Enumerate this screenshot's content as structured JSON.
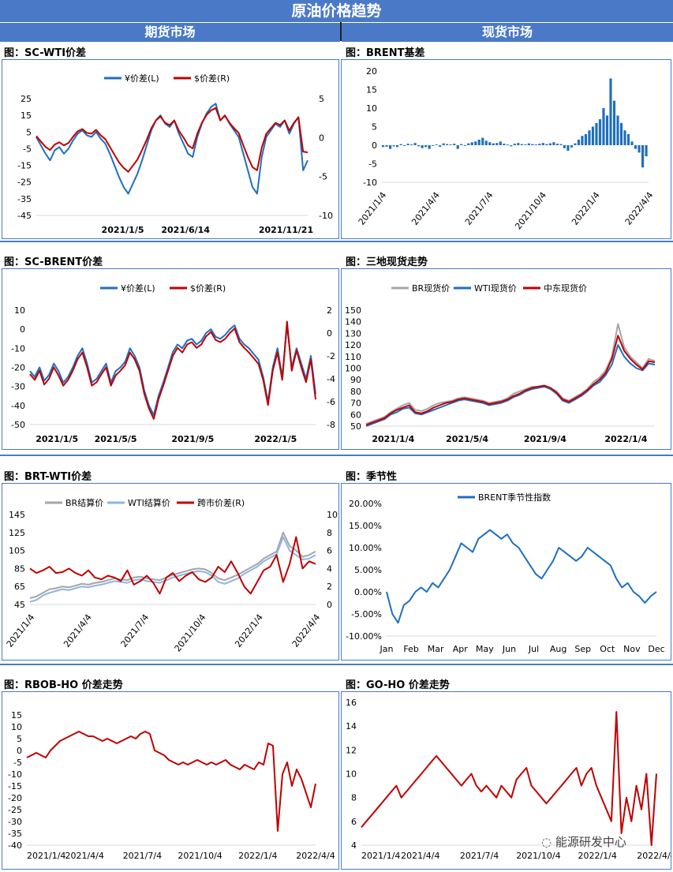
{
  "header": {
    "title": "原油价格趋势",
    "left_tab": "期货市场",
    "right_tab": "现货市场"
  },
  "watermark": "能源研发中心",
  "panels": [
    {
      "title": "图：SC-WTI价差"
    },
    {
      "title": "图：BRENT基差"
    },
    {
      "title": "图：SC-BRENT价差"
    },
    {
      "title": "图：三地现货走势"
    },
    {
      "title": "图：BRT-WTI价差"
    },
    {
      "title": "图：季节性"
    },
    {
      "title": "图：RBOB-HO 价差走势"
    },
    {
      "title": "图：GO-HO 价差走势"
    }
  ],
  "chart_data": [
    {
      "type": "line",
      "x_ticks": [
        "2021/1/5",
        "2021/6/14",
        "2021/11/21"
      ],
      "y_ticks": [
        "25",
        "15",
        "5",
        "-5",
        "-15",
        "-25",
        "-35",
        "-45"
      ],
      "y2_ticks": [
        "5",
        "0",
        "-5",
        "-10"
      ],
      "ylim": [
        -45,
        25
      ],
      "y2lim": [
        -10,
        5
      ],
      "series": [
        {
          "name": "¥价差(L)",
          "color": "#1f6fbf",
          "axis": "left",
          "values": [
            2,
            -3,
            -8,
            -12,
            -6,
            -4,
            -8,
            -5,
            0,
            4,
            6,
            3,
            2,
            5,
            1,
            -2,
            -8,
            -15,
            -22,
            -28,
            -32,
            -26,
            -20,
            -12,
            -3,
            6,
            12,
            15,
            10,
            8,
            12,
            4,
            -2,
            -8,
            -10,
            2,
            10,
            16,
            20,
            22,
            12,
            15,
            10,
            6,
            2,
            -8,
            -18,
            -28,
            -32,
            -10,
            2,
            6,
            10,
            8,
            12,
            4,
            10,
            14,
            -18,
            -12
          ]
        },
        {
          "name": "$价差(R)",
          "color": "#c00000",
          "axis": "right",
          "values": [
            0.2,
            -0.5,
            -1.2,
            -1.6,
            -0.9,
            -0.6,
            -1.0,
            -0.7,
            0.1,
            0.8,
            1.1,
            0.6,
            0.5,
            1.0,
            0.3,
            -0.2,
            -1.2,
            -2.2,
            -3.2,
            -3.9,
            -4.4,
            -3.6,
            -2.8,
            -1.6,
            -0.3,
            1.2,
            2.2,
            2.7,
            1.9,
            1.6,
            2.2,
            0.9,
            0.0,
            -1.0,
            -1.4,
            0.5,
            1.9,
            2.9,
            3.5,
            3.8,
            2.2,
            2.8,
            1.9,
            1.2,
            0.6,
            -1.0,
            -2.5,
            -3.8,
            -4.2,
            -1.3,
            0.5,
            1.2,
            1.9,
            1.6,
            2.2,
            0.9,
            1.9,
            2.6,
            -1.8,
            -1.9
          ]
        }
      ],
      "legend": "top"
    },
    {
      "type": "bar",
      "x_ticks": [
        "2021/1/4",
        "2021/4/4",
        "2021/7/4",
        "2021/10/4",
        "2022/1/4",
        "2022/4/4"
      ],
      "y_ticks": [
        "20",
        "15",
        "10",
        "5",
        "0",
        "-5",
        "-10"
      ],
      "ylim": [
        -10,
        20
      ],
      "color": "#1f6fbf",
      "values": [
        -0.5,
        -0.4,
        -1,
        -0.3,
        -0.5,
        0.3,
        -0.2,
        0.4,
        0.2,
        0.6,
        -0.3,
        -0.8,
        -0.5,
        -1,
        -0.2,
        0.2,
        -0.4,
        0.5,
        0.3,
        0.2,
        0.4,
        -1,
        0.3,
        -0.2,
        0.5,
        0.8,
        1,
        1.5,
        2,
        1.2,
        0.8,
        0.5,
        0.6,
        1,
        0.4,
        0.2,
        -0.3,
        0.4,
        0.6,
        0.3,
        0.2,
        0.5,
        0.3,
        0.2,
        0.4,
        0.6,
        0.3,
        0.5,
        0.8,
        0.4,
        0.3,
        -0.8,
        -1.5,
        -0.6,
        0.5,
        1.5,
        2.5,
        3,
        4,
        5,
        6,
        7,
        10,
        8,
        18,
        12,
        8,
        6,
        4,
        3,
        1,
        -1,
        -2,
        -6,
        -3
      ]
    },
    {
      "type": "line",
      "x_ticks": [
        "2021/1/5",
        "2021/5/5",
        "2021/9/5",
        "2022/1/5"
      ],
      "y_ticks": [
        "10",
        "0",
        "-10",
        "-20",
        "-30",
        "-40",
        "-50"
      ],
      "y2_ticks": [
        "2",
        "0",
        "-2",
        "-4",
        "-6",
        "-8"
      ],
      "ylim": [
        -50,
        10
      ],
      "y2lim": [
        -8,
        2
      ],
      "series": [
        {
          "name": "¥价差(L)",
          "color": "#1f6fbf",
          "axis": "left",
          "values": [
            -22,
            -25,
            -20,
            -27,
            -24,
            -18,
            -22,
            -28,
            -25,
            -20,
            -14,
            -10,
            -18,
            -28,
            -26,
            -22,
            -18,
            -28,
            -22,
            -20,
            -17,
            -10,
            -14,
            -20,
            -32,
            -40,
            -45,
            -35,
            -28,
            -20,
            -12,
            -8,
            -10,
            -6,
            -5,
            -8,
            -6,
            -2,
            0,
            -4,
            -5,
            -3,
            0,
            2,
            -5,
            -8,
            -10,
            -13,
            -16,
            -25,
            -38,
            -20,
            -10,
            -25,
            2,
            -20,
            -10,
            -18,
            -26,
            -14,
            -34
          ]
        },
        {
          "name": "$价差(R)",
          "color": "#c00000",
          "axis": "right",
          "values": [
            -3.6,
            -4.1,
            -3.3,
            -4.5,
            -4.0,
            -3.0,
            -3.7,
            -4.6,
            -4.1,
            -3.3,
            -2.3,
            -1.7,
            -3.0,
            -4.6,
            -4.3,
            -3.6,
            -3.0,
            -4.6,
            -3.7,
            -3.3,
            -2.8,
            -1.7,
            -2.3,
            -3.3,
            -5.3,
            -6.6,
            -7.5,
            -5.8,
            -4.6,
            -3.3,
            -2.0,
            -1.3,
            -1.7,
            -1.0,
            -0.8,
            -1.3,
            -1.0,
            -0.3,
            0.1,
            -0.6,
            -0.8,
            -0.5,
            0.0,
            0.4,
            -0.8,
            -1.3,
            -1.7,
            -2.2,
            -2.7,
            -4.1,
            -6.3,
            -3.3,
            -1.7,
            -4.1,
            1.0,
            -3.3,
            -1.5,
            -3.0,
            -4.3,
            -2.3,
            -5.8
          ]
        }
      ],
      "legend": "top"
    },
    {
      "type": "line",
      "x_ticks": [
        "2021/1/4",
        "2021/5/4",
        "2021/9/4",
        "2022/1/4"
      ],
      "y_ticks": [
        "150",
        "140",
        "130",
        "120",
        "110",
        "100",
        "90",
        "80",
        "70",
        "60",
        "50"
      ],
      "ylim": [
        50,
        150
      ],
      "series": [
        {
          "name": "BR现货价",
          "color": "#a5a5a5",
          "values": [
            52,
            54,
            56,
            58,
            62,
            65,
            68,
            70,
            64,
            63,
            65,
            68,
            70,
            71,
            72,
            74,
            75,
            74,
            73,
            72,
            70,
            71,
            72,
            74,
            78,
            80,
            82,
            84,
            84,
            85,
            83,
            80,
            74,
            72,
            75,
            78,
            82,
            88,
            92,
            98,
            110,
            138,
            118,
            110,
            105,
            100,
            108,
            106
          ]
        },
        {
          "name": "WTI现货价",
          "color": "#1f6fbf",
          "values": [
            50,
            52,
            54,
            56,
            60,
            62,
            65,
            66,
            61,
            60,
            62,
            64,
            66,
            68,
            70,
            72,
            73,
            72,
            71,
            70,
            68,
            69,
            70,
            72,
            75,
            77,
            80,
            82,
            83,
            84,
            82,
            78,
            72,
            70,
            73,
            76,
            80,
            85,
            88,
            94,
            103,
            120,
            110,
            104,
            100,
            98,
            104,
            103
          ]
        },
        {
          "name": "中东现货价",
          "color": "#c00000",
          "values": [
            51,
            53,
            55,
            57,
            61,
            64,
            66,
            68,
            62,
            61,
            63,
            66,
            68,
            70,
            71,
            73,
            74,
            73,
            72,
            71,
            69,
            70,
            71,
            73,
            76,
            78,
            81,
            83,
            84,
            85,
            83,
            79,
            73,
            71,
            74,
            77,
            81,
            86,
            90,
            96,
            108,
            128,
            115,
            108,
            103,
            99,
            106,
            105
          ]
        }
      ],
      "legend": "top"
    },
    {
      "type": "line",
      "x_ticks": [
        "2021/1/4",
        "2021/4/4",
        "2021/7/4",
        "2021/10/4",
        "2022/1/4",
        "2022/4/4"
      ],
      "y_ticks": [
        "145",
        "125",
        "105",
        "85",
        "65",
        "45"
      ],
      "y2_ticks": [
        "10",
        "8",
        "6",
        "4",
        "2",
        "0"
      ],
      "ylim": [
        45,
        145
      ],
      "y2lim": [
        0,
        10
      ],
      "series": [
        {
          "name": "BR结算价",
          "color": "#a5a5a5",
          "axis": "left",
          "values": [
            52,
            54,
            58,
            62,
            63,
            65,
            64,
            66,
            68,
            67,
            69,
            70,
            72,
            74,
            73,
            72,
            75,
            76,
            74,
            73,
            72,
            75,
            78,
            80,
            82,
            84,
            85,
            84,
            80,
            74,
            72,
            75,
            78,
            82,
            86,
            90,
            96,
            100,
            104,
            125,
            110,
            105,
            98,
            100,
            104
          ]
        },
        {
          "name": "WTI结算价",
          "color": "#8eb4e3",
          "axis": "left",
          "values": [
            48,
            50,
            55,
            58,
            60,
            62,
            61,
            63,
            65,
            64,
            66,
            67,
            69,
            71,
            70,
            69,
            72,
            73,
            71,
            70,
            69,
            72,
            75,
            77,
            79,
            81,
            82,
            81,
            77,
            70,
            68,
            71,
            74,
            79,
            83,
            87,
            93,
            97,
            101,
            120,
            105,
            100,
            95,
            96,
            100
          ]
        },
        {
          "name": "跨市价差(R)",
          "color": "#c00000",
          "axis": "right",
          "values": [
            4,
            3.5,
            3.8,
            4.2,
            3.5,
            3.6,
            4.0,
            3.5,
            3.2,
            3.8,
            3.0,
            2.8,
            3.2,
            3.0,
            2.6,
            3.8,
            2.2,
            2.6,
            3.2,
            2.4,
            1.2,
            3.0,
            3.5,
            2.6,
            3.2,
            3.6,
            2.8,
            2.5,
            3.0,
            4.2,
            3.6,
            4.8,
            3.5,
            2.0,
            1.2,
            2.5,
            3.8,
            4.2,
            5.5,
            2.5,
            4.5,
            7.5,
            4.0,
            4.8,
            4.5
          ]
        }
      ],
      "legend": "top"
    },
    {
      "type": "line",
      "x_ticks": [
        "Jan",
        "Feb",
        "Mar",
        "Apr",
        "May",
        "Jun",
        "Jul",
        "Aug",
        "Sep",
        "Oct",
        "Nov",
        "Dec"
      ],
      "y_ticks": [
        "20.00%",
        "15.00%",
        "10.00%",
        "5.00%",
        "0.00%",
        "-5.00%",
        "-10.00%"
      ],
      "ylim": [
        -10,
        20
      ],
      "series": [
        {
          "name": "BRENT季节性指数",
          "color": "#1f6fbf",
          "values": [
            0,
            -5,
            -7,
            -3,
            -2,
            0,
            1,
            0,
            2,
            1,
            3,
            5,
            8,
            11,
            10,
            9,
            12,
            13,
            14,
            13,
            12,
            13,
            11,
            10,
            8,
            6,
            4,
            3,
            5,
            7,
            10,
            9,
            8,
            7,
            8,
            10,
            9,
            8,
            7,
            6,
            3,
            1,
            2,
            0,
            -1,
            -2.5,
            -1,
            0
          ]
        }
      ],
      "legend": "top"
    },
    {
      "type": "line",
      "x_ticks": [
        "2021/1/4",
        "2021/4/4",
        "2021/7/4",
        "2021/10/4",
        "2022/1/4",
        "2022/4/4"
      ],
      "y_ticks": [
        "15",
        "10",
        "5",
        "0",
        "-5",
        "-10",
        "-15",
        "-20",
        "-25",
        "-30",
        "-35",
        "-40"
      ],
      "ylim": [
        -40,
        15
      ],
      "series": [
        {
          "name": "",
          "color": "#c00000",
          "values": [
            -3,
            -2,
            -1,
            -2,
            -3,
            0,
            2,
            4,
            5,
            6,
            7,
            8,
            7,
            6,
            6,
            5,
            4,
            5,
            4,
            3,
            4,
            5,
            6,
            5,
            7,
            8,
            7,
            0,
            -1,
            -2,
            -4,
            -5,
            -6,
            -5,
            -6,
            -5,
            -4,
            -5,
            -6,
            -5,
            -6,
            -5,
            -4,
            -6,
            -7,
            -8,
            -6,
            -7,
            -8,
            -5,
            -6,
            3,
            2,
            -34,
            -10,
            -5,
            -15,
            -8,
            -12,
            -18,
            -24,
            -14
          ]
        }
      ]
    },
    {
      "type": "line",
      "x_ticks": [
        "2021/1/4",
        "2021/4/4",
        "2021/7/4",
        "2021/10/4",
        "2022/1/4",
        "2022/4/4"
      ],
      "y_ticks": [
        "16",
        "14",
        "12",
        "10",
        "8",
        "6",
        "4"
      ],
      "ylim": [
        4,
        16
      ],
      "series": [
        {
          "name": "",
          "color": "#c00000",
          "values": [
            5.5,
            6,
            6.5,
            7,
            7.5,
            8,
            8.5,
            9,
            8,
            8.5,
            9,
            9.5,
            10,
            10.5,
            11,
            11.5,
            11,
            10.5,
            10,
            9.5,
            9,
            9.5,
            10,
            9,
            8.5,
            9,
            8.5,
            8,
            9,
            8.5,
            8,
            9.5,
            10,
            10.5,
            9,
            8.5,
            8,
            7.5,
            8,
            8.5,
            9,
            9.5,
            10,
            10.5,
            9,
            10,
            10.5,
            9,
            8,
            7,
            6,
            15.2,
            5,
            8,
            6,
            9,
            7,
            10,
            4,
            10
          ]
        }
      ]
    }
  ]
}
